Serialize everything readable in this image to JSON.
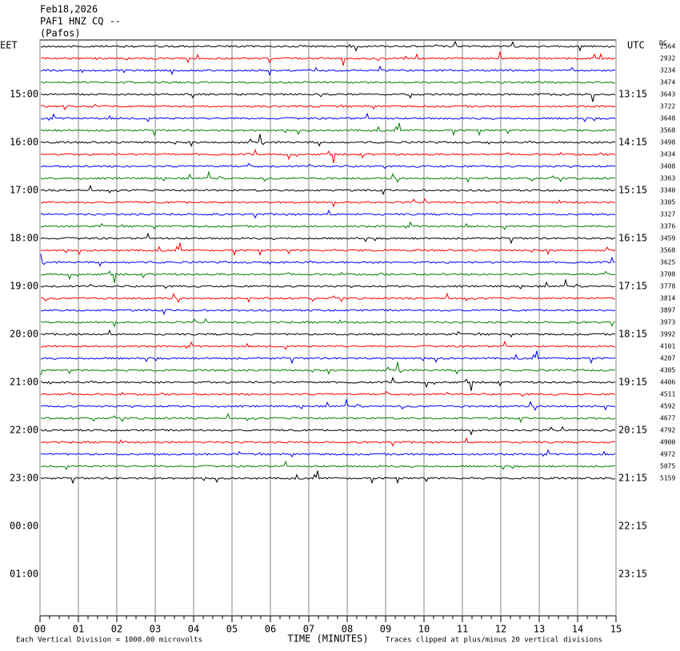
{
  "header": {
    "date": "Feb18,2026",
    "station": "PAF1 HNZ CQ --",
    "location": "(Pafos)"
  },
  "left_axis": {
    "label": "EET",
    "times": [
      "15:00",
      "16:00",
      "17:00",
      "18:00",
      "19:00",
      "20:00",
      "21:00",
      "22:00",
      "23:00",
      "00:00",
      "01:00"
    ]
  },
  "right_axis": {
    "label": "UTC",
    "times": [
      "13:15",
      "14:15",
      "15:15",
      "16:15",
      "17:15",
      "18:15",
      "19:15",
      "20:15",
      "21:15",
      "22:15",
      "23:15"
    ]
  },
  "dc": {
    "label": "DC",
    "values": [
      2564,
      2932,
      3234,
      3474,
      3643,
      3722,
      3648,
      3568,
      3498,
      3434,
      3408,
      3363,
      3340,
      3305,
      3327,
      3376,
      3459,
      3568,
      3625,
      3708,
      3778,
      3814,
      3897,
      3973,
      3992,
      4101,
      4207,
      4305,
      4406,
      4511,
      4592,
      4677,
      4792,
      4900,
      4972,
      5075,
      5159
    ]
  },
  "x_axis": {
    "label": "TIME (MINUTES)",
    "ticks": [
      "00",
      "01",
      "02",
      "03",
      "04",
      "05",
      "06",
      "07",
      "08",
      "09",
      "10",
      "11",
      "12",
      "13",
      "14",
      "15"
    ]
  },
  "footer": {
    "scale": "Each Vertical Division = 1000.00 microvolts",
    "clip": "Traces clipped at plus/minus 20 vertical divisions"
  },
  "trace_colors": [
    "#000000",
    "#ff0000",
    "#0000ff",
    "#008000"
  ]
}
